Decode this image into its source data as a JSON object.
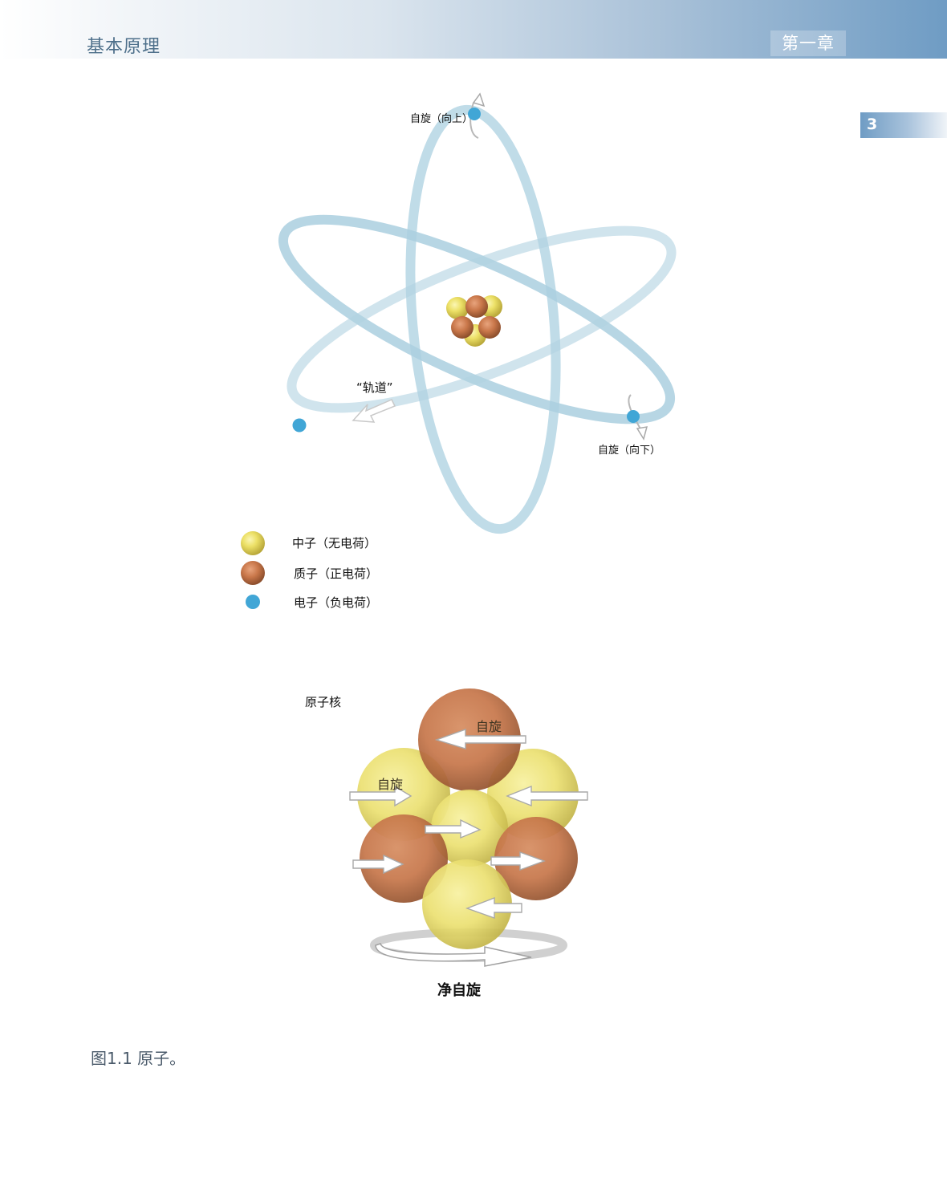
{
  "header": {
    "section_title": "基本原理",
    "chapter": "第一章",
    "page_number": "3"
  },
  "atom": {
    "spin_up_label": "自旋（向上）",
    "spin_down_label": "自旋（向下）",
    "orbit_label": "“轨道”",
    "colors": {
      "orbit": "#aacfdf",
      "electron": "#41a6d6",
      "neutron": "#ead85c",
      "proton": "#c9774a"
    }
  },
  "legend": [
    {
      "label": "中子（无电荷）",
      "marker": "neutron"
    },
    {
      "label": "质子（正电荷）",
      "marker": "proton"
    },
    {
      "label": "电子（负电荷）",
      "marker": "electron"
    }
  ],
  "nucleus": {
    "title": "原子核",
    "spin_label_1": "自旋",
    "spin_label_2": "自旋",
    "net_spin_label": "净自旋"
  },
  "caption": "图1.1 原子。"
}
